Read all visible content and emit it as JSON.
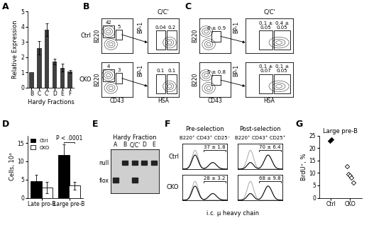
{
  "chart_data": [
    {
      "panel": "A",
      "type": "bar",
      "categories": [
        "B",
        "C",
        "C'",
        "D",
        "E",
        "F"
      ],
      "values": [
        1.0,
        2.6,
        3.8,
        1.7,
        1.3,
        1.05
      ],
      "errors": [
        0,
        0.45,
        0.4,
        0.2,
        0.25,
        0.1
      ],
      "color": "#404040",
      "ylim": [
        0,
        5
      ],
      "yticks": [
        0,
        1,
        2,
        3,
        4,
        5
      ],
      "y_label": "Relative Expression",
      "x_label": "Hardy Fractions"
    },
    {
      "panel": "D",
      "type": "bar",
      "categories": [
        "Late pro-B",
        "Large pre-B"
      ],
      "series": [
        {
          "name": "Ctrl",
          "color": "#000000",
          "values": [
            4.5,
            11.8
          ],
          "errors": [
            1.8,
            2.8
          ]
        },
        {
          "name": "CKO",
          "color": "#ffffff",
          "values": [
            2.8,
            3.3
          ],
          "errors": [
            1.5,
            1.0
          ]
        }
      ],
      "ylim": [
        0,
        17
      ],
      "yticks": [
        0,
        5,
        10,
        15
      ],
      "y_label": "Cells, 10⁴",
      "legend": "upper left",
      "annotation": "P < .0001"
    },
    {
      "panel": "G",
      "type": "scatter",
      "title": "Large pre-B",
      "categories": [
        "Ctrl",
        "CKO"
      ],
      "values": [
        [
          22.8,
          23.6
        ],
        [
          12.6,
          9.6,
          9.0,
          8.2,
          6.0
        ]
      ],
      "colors": [
        "#000000",
        "#ffffff"
      ],
      "marker": "D",
      "ylim": [
        0,
        25
      ],
      "yticks": [
        0,
        5,
        10,
        15,
        20,
        25
      ],
      "y_label": "BrdU⁺, %"
    }
  ],
  "flow_panels": [
    {
      "panel": "B",
      "rows": [
        "Ctrl",
        "CKO"
      ],
      "x_label": "CD43",
      "y_label": "B220",
      "gates": [
        [
          "42",
          "5"
        ],
        [
          "4",
          "3"
        ]
      ],
      "sub_title": "C/C'",
      "sub_x_label": "HSA",
      "sub_y_label": "BP-1",
      "sub_gates": [
        [
          "0.04",
          "0.2"
        ],
        [
          "0.1",
          "0.1"
        ]
      ]
    },
    {
      "panel": "C",
      "x_label": "CD43",
      "y_label": "B220",
      "gates": [
        [
          "6 ± 0.9"
        ],
        [
          "5 ± 0.8"
        ]
      ],
      "sub_title": "C/C'",
      "sub_x_label": "HSA",
      "sub_y_label": "BP-1",
      "sub_gates": [
        [
          "0.1 ±\n0.05",
          "0.4 ±\n0.05"
        ],
        [
          "0.1 ±\n0.07",
          "0.1 ±\n0.05"
        ]
      ]
    }
  ],
  "gel": {
    "panel": "E",
    "title": "Hardy Fraction",
    "lanes": [
      "A",
      "B",
      "C/C'",
      "D",
      "E"
    ],
    "band_names": [
      "null",
      "flox"
    ],
    "bands": [
      [
        "flox"
      ],
      [
        "null"
      ],
      [
        "null",
        "flox"
      ],
      [
        "null"
      ],
      [
        "null"
      ]
    ]
  },
  "histograms": {
    "panel": "F",
    "rows": [
      "Ctrl",
      "CKO"
    ],
    "columns": [
      {
        "title": "Pre-selection",
        "subtitle": "B220⁺ CD43⁺ CD25⁻"
      },
      {
        "title": "Post-selection",
        "subtitle": "B220⁺ CD43⁺ CD25⁺"
      }
    ],
    "values": [
      [
        "37 ± 1.8",
        "70 ± 6.4"
      ],
      [
        "28 ± 3.2",
        "68 ± 9.8"
      ]
    ],
    "x_label": "i.c. μ heavy chain"
  }
}
